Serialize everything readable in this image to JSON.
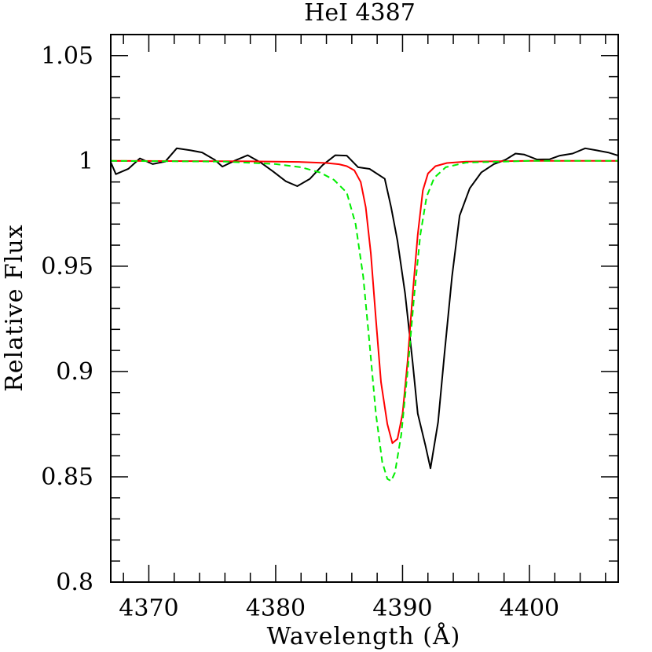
{
  "chart_data": {
    "type": "line",
    "title": "HeI 4387",
    "xlabel": "Wavelength (Å)",
    "ylabel": "Relative Flux",
    "xlim": [
      4367,
      4407
    ],
    "ylim": [
      0.8,
      1.06
    ],
    "xticks": [
      {
        "value": 4370,
        "label": "4370"
      },
      {
        "value": 4380,
        "label": "4380"
      },
      {
        "value": 4390,
        "label": "4390"
      },
      {
        "value": 4400,
        "label": "4400"
      }
    ],
    "yticks": [
      {
        "value": 0.8,
        "label": "0.8"
      },
      {
        "value": 0.85,
        "label": "0.85"
      },
      {
        "value": 0.9,
        "label": "0.9"
      },
      {
        "value": 0.95,
        "label": "0.95"
      },
      {
        "value": 1.0,
        "label": "1"
      },
      {
        "value": 1.05,
        "label": "1.05"
      }
    ],
    "x_minor_step": 2,
    "y_minor_step": 0.01,
    "grid": false,
    "series": [
      {
        "id": "observed",
        "color": "#000000",
        "dashed": false,
        "points": [
          [
            4367.0,
            0.9994
          ],
          [
            4367.4,
            0.9937
          ],
          [
            4368.4,
            0.9963
          ],
          [
            4369.3,
            1.0012
          ],
          [
            4370.3,
            0.9985
          ],
          [
            4371.3,
            0.9997
          ],
          [
            4372.2,
            1.006
          ],
          [
            4373.3,
            1.005
          ],
          [
            4374.2,
            1.004
          ],
          [
            4375.2,
            1.0005
          ],
          [
            4375.8,
            0.9973
          ],
          [
            4376.8,
            1.0002
          ],
          [
            4377.8,
            1.0027
          ],
          [
            4378.8,
            0.9993
          ],
          [
            4379.8,
            0.995
          ],
          [
            4380.8,
            0.9903
          ],
          [
            4381.7,
            0.988
          ],
          [
            4382.7,
            0.9915
          ],
          [
            4383.7,
            0.998
          ],
          [
            4384.7,
            1.0027
          ],
          [
            4385.6,
            1.0025
          ],
          [
            4386.5,
            0.997
          ],
          [
            4387.4,
            0.9962
          ],
          [
            4388.6,
            0.9915
          ],
          [
            4389.1,
            0.978
          ],
          [
            4389.6,
            0.962
          ],
          [
            4390.2,
            0.937
          ],
          [
            4390.8,
            0.904
          ],
          [
            4391.2,
            0.88
          ],
          [
            4391.8,
            0.865
          ],
          [
            4392.2,
            0.854
          ],
          [
            4392.8,
            0.876
          ],
          [
            4393.3,
            0.908
          ],
          [
            4393.9,
            0.945
          ],
          [
            4394.5,
            0.974
          ],
          [
            4395.3,
            0.987
          ],
          [
            4396.2,
            0.9945
          ],
          [
            4397.2,
            0.9985
          ],
          [
            4398.1,
            1.0005
          ],
          [
            4398.9,
            1.0035
          ],
          [
            4399.6,
            1.003
          ],
          [
            4400.6,
            1.0007
          ],
          [
            4401.6,
            1.0008
          ],
          [
            4402.4,
            1.0025
          ],
          [
            4403.4,
            1.0035
          ],
          [
            4404.4,
            1.006
          ],
          [
            4405.3,
            1.005
          ],
          [
            4406.2,
            1.004
          ],
          [
            4407.0,
            1.0025
          ]
        ]
      },
      {
        "id": "model-red",
        "color": "#ff0000",
        "dashed": false,
        "points": [
          [
            4367.0,
            1.0
          ],
          [
            4378.0,
            0.9998
          ],
          [
            4382.0,
            0.9995
          ],
          [
            4384.0,
            0.999
          ],
          [
            4385.0,
            0.9984
          ],
          [
            4385.6,
            0.9975
          ],
          [
            4386.2,
            0.9955
          ],
          [
            4386.7,
            0.99
          ],
          [
            4387.1,
            0.978
          ],
          [
            4387.5,
            0.956
          ],
          [
            4387.9,
            0.925
          ],
          [
            4388.3,
            0.895
          ],
          [
            4388.8,
            0.875
          ],
          [
            4389.2,
            0.866
          ],
          [
            4389.6,
            0.868
          ],
          [
            4390.0,
            0.88
          ],
          [
            4390.4,
            0.905
          ],
          [
            4390.8,
            0.937
          ],
          [
            4391.2,
            0.965
          ],
          [
            4391.6,
            0.986
          ],
          [
            4392.0,
            0.994
          ],
          [
            4392.6,
            0.9975
          ],
          [
            4393.5,
            0.999
          ],
          [
            4395.0,
            0.9997
          ],
          [
            4400.0,
            1.0
          ],
          [
            4407.0,
            1.0
          ]
        ]
      },
      {
        "id": "model-green",
        "color": "#00ee00",
        "dashed": true,
        "points": [
          [
            4367.0,
            1.0
          ],
          [
            4376.0,
            0.9997
          ],
          [
            4380.0,
            0.9985
          ],
          [
            4382.0,
            0.997
          ],
          [
            4383.5,
            0.9945
          ],
          [
            4384.6,
            0.991
          ],
          [
            4385.6,
            0.985
          ],
          [
            4386.3,
            0.97
          ],
          [
            4386.9,
            0.945
          ],
          [
            4387.4,
            0.913
          ],
          [
            4387.9,
            0.88
          ],
          [
            4388.4,
            0.857
          ],
          [
            4388.8,
            0.849
          ],
          [
            4389.1,
            0.848
          ],
          [
            4389.4,
            0.852
          ],
          [
            4389.9,
            0.87
          ],
          [
            4390.4,
            0.9
          ],
          [
            4390.9,
            0.935
          ],
          [
            4391.4,
            0.965
          ],
          [
            4391.9,
            0.983
          ],
          [
            4392.5,
            0.992
          ],
          [
            4393.4,
            0.997
          ],
          [
            4395.0,
            0.9992
          ],
          [
            4400.0,
            1.0
          ],
          [
            4407.0,
            1.0
          ]
        ]
      }
    ]
  }
}
